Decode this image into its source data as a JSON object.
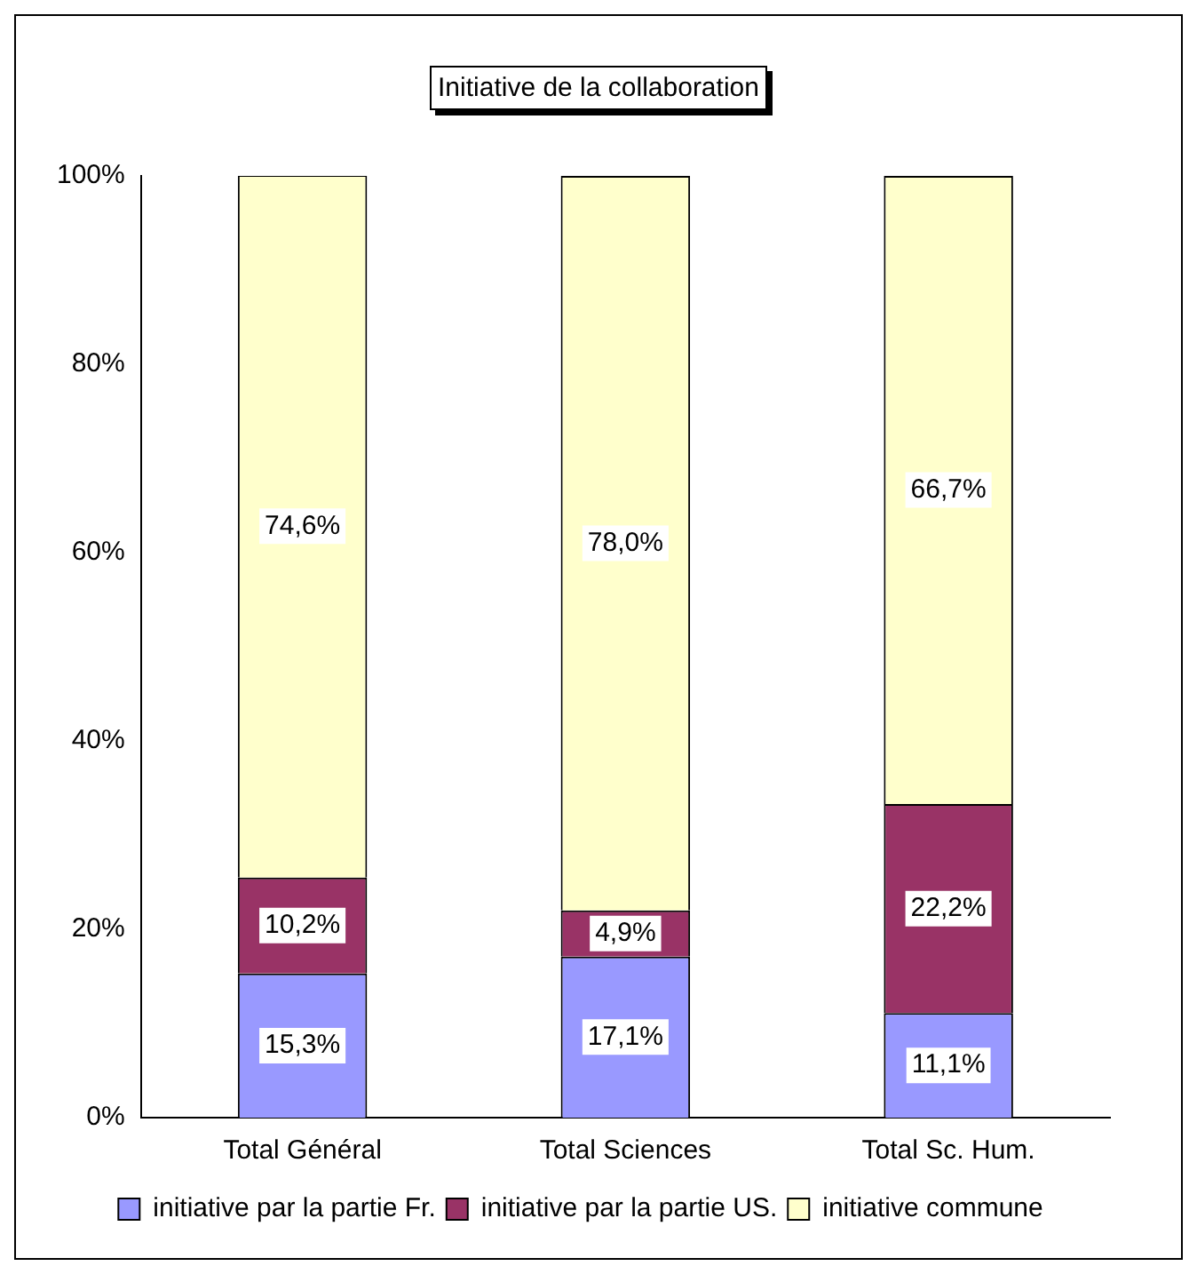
{
  "chart_data": {
    "type": "bar",
    "title": "Initiative de la collaboration",
    "categories": [
      "Total Général",
      "Total Sciences",
      "Total Sc. Hum."
    ],
    "stacked": true,
    "series": [
      {
        "name": "initiative par la partie Fr.",
        "color": "#9999ff",
        "values": [
          15.3,
          17.1,
          11.1
        ],
        "value_labels": [
          "15,3%",
          "17,1%",
          "11,1%"
        ]
      },
      {
        "name": "initiative par la partie US.",
        "color": "#993366",
        "values": [
          10.2,
          4.9,
          22.2
        ],
        "value_labels": [
          "10,2%",
          "4,9%",
          "22,2%"
        ]
      },
      {
        "name": "initiative commune",
        "color": "#ffffcc",
        "values": [
          74.6,
          78.0,
          66.7
        ],
        "value_labels": [
          "74,6%",
          "78,0%",
          "66,7%"
        ]
      }
    ],
    "ylim": [
      0,
      100
    ],
    "yticks": [
      {
        "value": 0,
        "label": "0%"
      },
      {
        "value": 20,
        "label": "20%"
      },
      {
        "value": 40,
        "label": "40%"
      },
      {
        "value": 60,
        "label": "60%"
      },
      {
        "value": 80,
        "label": "80%"
      },
      {
        "value": 100,
        "label": "100%"
      }
    ],
    "grid": false,
    "legend": "bottom"
  }
}
